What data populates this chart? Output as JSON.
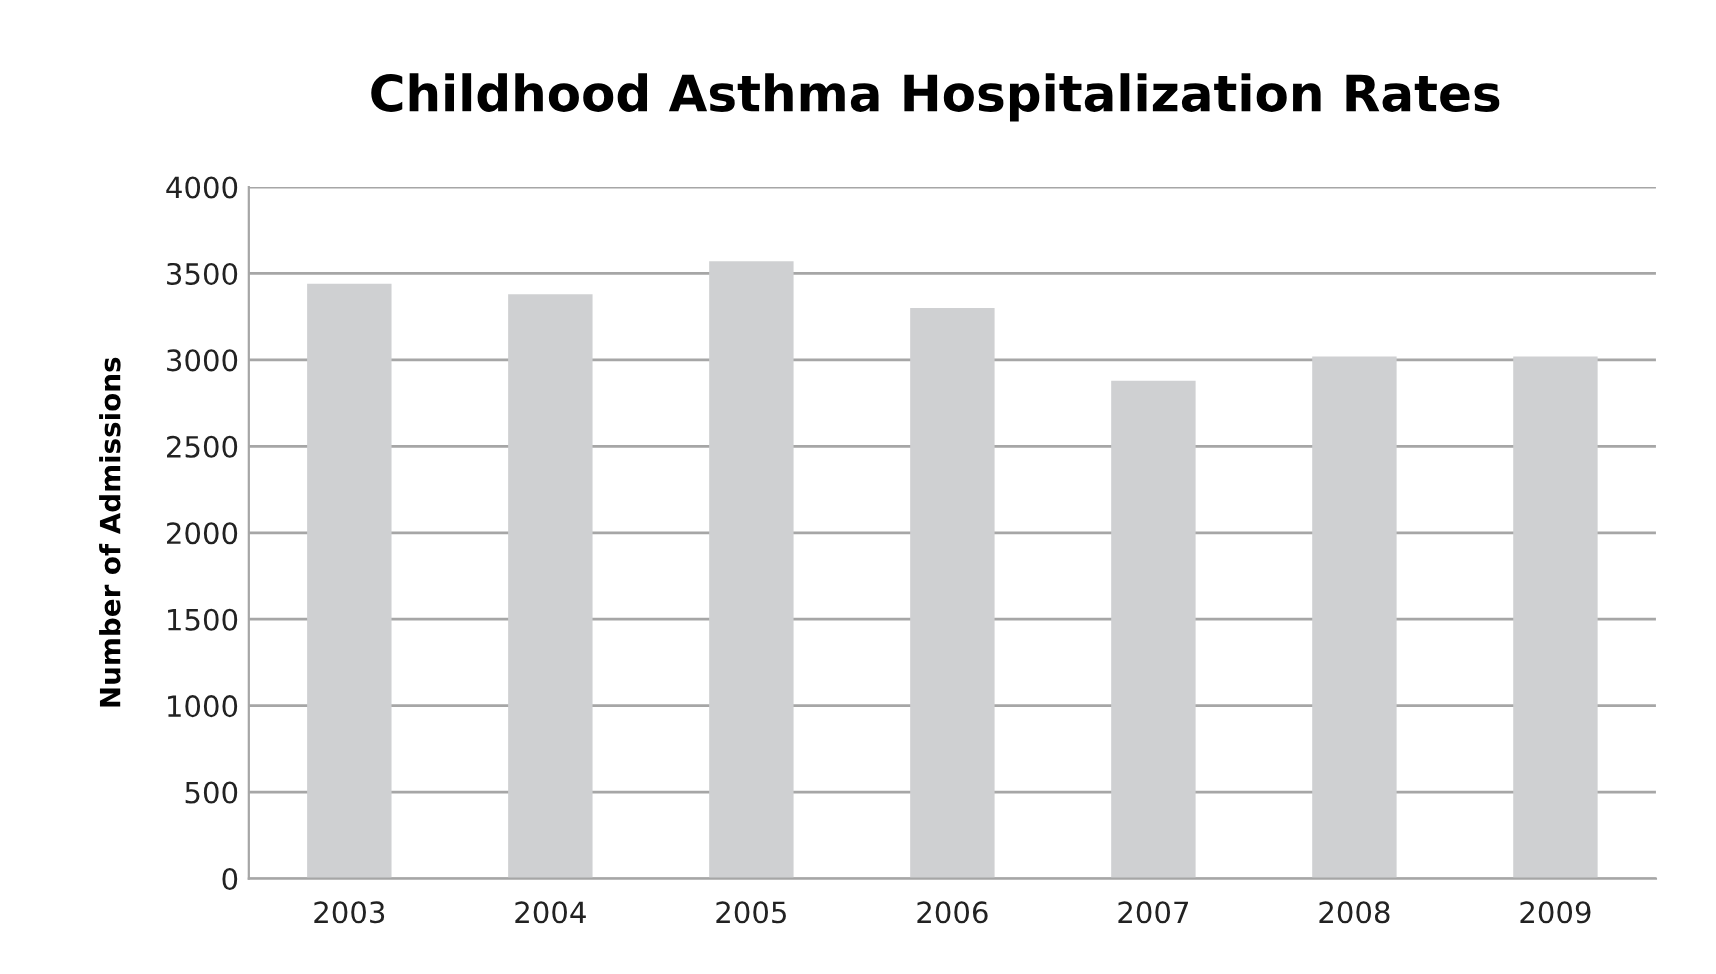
{
  "chart_data": {
    "type": "bar",
    "title": "Childhood Asthma Hospitalization Rates",
    "ylabel": "Number of Admissions",
    "categories": [
      "2003",
      "2004",
      "2005",
      "2006",
      "2007",
      "2008",
      "2009"
    ],
    "values": [
      3440,
      3380,
      3570,
      3300,
      2880,
      3020,
      3020
    ],
    "color": "#cfd0d2",
    "ylim": [
      0,
      4000
    ],
    "yticks": [
      0,
      500,
      1000,
      1500,
      2000,
      2500,
      3000,
      3500,
      4000
    ],
    "grid": "y"
  }
}
